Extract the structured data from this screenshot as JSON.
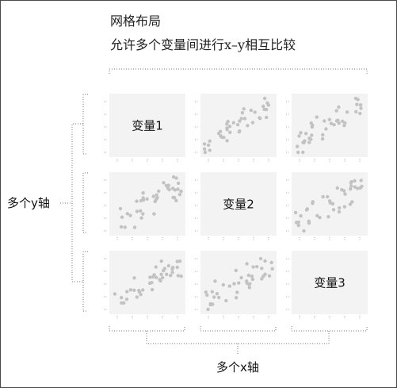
{
  "title": "网格布局",
  "subtitle": "允许多个变量间进行x–y相互比较",
  "y_axis_label": "多个y轴",
  "x_axis_label": "多个x轴",
  "diagonal_labels": [
    "变量1",
    "变量2",
    "变量3"
  ],
  "colors": {
    "points": "#c2c2c2",
    "panel": "#f3f3f3",
    "frame": "#4a4a4a"
  }
}
